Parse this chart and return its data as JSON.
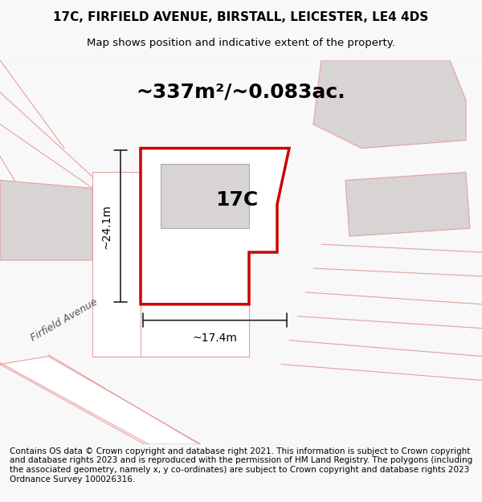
{
  "title_line1": "17C, FIRFIELD AVENUE, BIRSTALL, LEICESTER, LE4 4DS",
  "title_line2": "Map shows position and indicative extent of the property.",
  "area_text": "~337m²/~0.083ac.",
  "label_17c": "17C",
  "dim_width": "~17.4m",
  "dim_height": "~24.1m",
  "street_label": "Firfield Avenue",
  "footer": "Contains OS data © Crown copyright and database right 2021. This information is subject to Crown copyright and database rights 2023 and is reproduced with the permission of HM Land Registry. The polygons (including the associated geometry, namely x, y co-ordinates) are subject to Crown copyright and database rights 2023 Ordnance Survey 100026316.",
  "bg_color": "#f5f0f0",
  "map_bg": "#f5f0f0",
  "road_fill": "#ffffff",
  "building_fill": "#d8d4d4",
  "property_fill": "#ffffff",
  "property_edge": "#cc0000",
  "dim_color": "#222222",
  "road_line_color": "#e8a0a0",
  "title_fontsize": 11,
  "subtitle_fontsize": 9.5,
  "area_fontsize": 18,
  "label_fontsize": 18,
  "dim_fontsize": 10,
  "footer_fontsize": 7.5
}
